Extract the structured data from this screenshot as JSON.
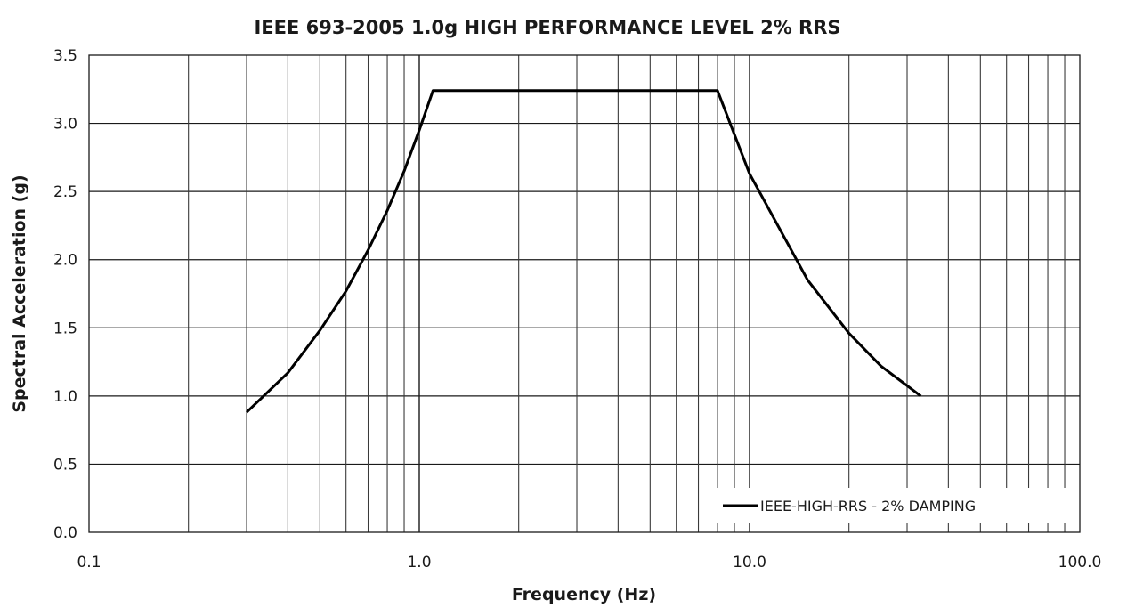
{
  "chart_data": {
    "type": "line",
    "title": "IEEE 693-2005 1.0g HIGH PERFORMANCE LEVEL 2% RRS",
    "xlabel": "Frequency (Hz)",
    "ylabel": "Spectral Acceleration (g)",
    "xscale": "log",
    "xlim": [
      0.1,
      100
    ],
    "ylim": [
      0,
      3.5
    ],
    "xticks": [
      0.1,
      1,
      10,
      100
    ],
    "xtick_labels": [
      "0.1",
      "1.0",
      "10.0",
      "100.0"
    ],
    "yticks": [
      0,
      0.5,
      1,
      1.5,
      2,
      2.5,
      3,
      3.5
    ],
    "ytick_labels": [
      "0.0",
      "0.5",
      "1.0",
      "1.5",
      "2.0",
      "2.5",
      "3.0",
      "3.5"
    ],
    "grid": true,
    "legend_position": "bottom-right",
    "series": [
      {
        "name": "IEEE-HIGH-RRS - 2% DAMPING",
        "color": "#000000",
        "x": [
          0.3,
          0.4,
          0.5,
          0.6,
          0.7,
          0.8,
          0.9,
          1.0,
          1.1,
          8.0,
          10.0,
          15.0,
          20.0,
          25.0,
          33.0
        ],
        "y": [
          0.88,
          1.17,
          1.48,
          1.77,
          2.07,
          2.36,
          2.65,
          2.95,
          3.24,
          3.24,
          2.63,
          1.85,
          1.46,
          1.22,
          1.0
        ]
      }
    ]
  }
}
